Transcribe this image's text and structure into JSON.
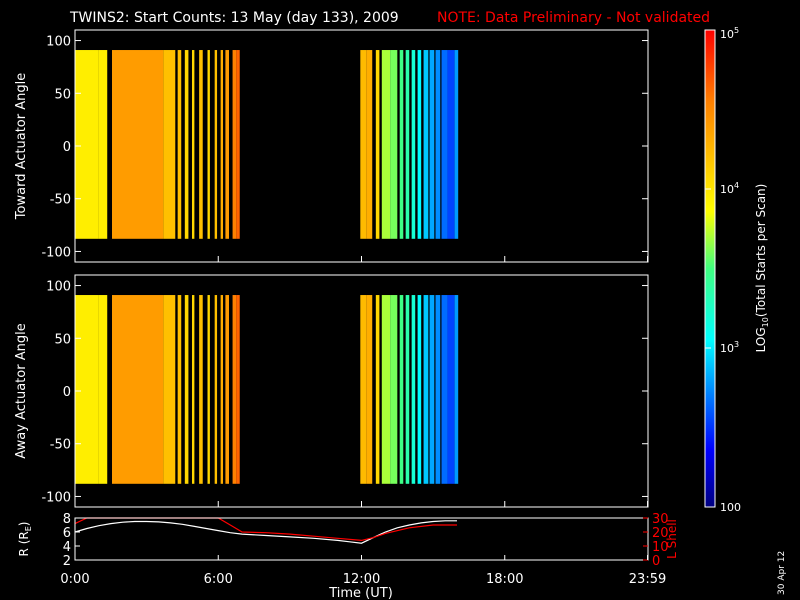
{
  "title": {
    "main": "TWINS2: Start Counts: 13 May (day 133), 2009",
    "note": "NOTE: Data Preliminary - Not validated"
  },
  "date_stamp": "30 Apr 12",
  "colors": {
    "background": "#000000",
    "axis": "#ffffff",
    "note": "#ff0000",
    "r_line": "#ffffff",
    "lshell_line": "#ff0000"
  },
  "colorbar": {
    "label": "LOG10(Total Starts per Scan)",
    "label_main": "LOG",
    "label_sub": "10",
    "label_rest": "(Total Starts per Scan)",
    "scale": "log",
    "range": [
      100,
      100000
    ],
    "ticks": [
      {
        "value": 100,
        "label": "100"
      },
      {
        "value": 1000,
        "label_base": "10",
        "label_exp": "3"
      },
      {
        "value": 10000,
        "label_base": "10",
        "label_exp": "4"
      },
      {
        "value": 100000,
        "label_base": "10",
        "label_exp": "5"
      }
    ]
  },
  "chart_data": [
    {
      "type": "heatmap",
      "name": "toward",
      "ylabel": "Toward Actuator Angle",
      "xlim": [
        0,
        24
      ],
      "ylim": [
        -110,
        110
      ],
      "y_extent": [
        -88,
        91
      ],
      "yticks": [
        100,
        50,
        0,
        -50,
        -100
      ],
      "ytick_labels": [
        "100",
        "50",
        "0",
        "-50",
        "-100"
      ],
      "colorbar": "log 100 to 100000",
      "scans": [
        {
          "t0": 0.0,
          "t1": 1.0,
          "counts": 9000
        },
        {
          "t0": 1.0,
          "t1": 1.35,
          "counts": 9000
        },
        {
          "t0": 1.55,
          "t1": 3.7,
          "counts": 25000
        },
        {
          "t0": 3.7,
          "t1": 4.2,
          "counts": 16000
        },
        {
          "t0": 4.3,
          "t1": 4.45,
          "counts": 16000
        },
        {
          "t0": 4.6,
          "t1": 4.75,
          "counts": 12000
        },
        {
          "t0": 4.9,
          "t1": 5.0,
          "counts": 12000
        },
        {
          "t0": 5.2,
          "t1": 5.35,
          "counts": 16000
        },
        {
          "t0": 5.55,
          "t1": 5.65,
          "counts": 12000
        },
        {
          "t0": 5.85,
          "t1": 5.95,
          "counts": 16000
        },
        {
          "t0": 6.1,
          "t1": 6.2,
          "counts": 20000
        },
        {
          "t0": 6.3,
          "t1": 6.45,
          "counts": 25000
        },
        {
          "t0": 6.6,
          "t1": 6.75,
          "counts": 35000
        },
        {
          "t0": 6.75,
          "t1": 6.9,
          "counts": 45000
        },
        {
          "t0": 11.95,
          "t1": 12.2,
          "counts": 17000
        },
        {
          "t0": 12.2,
          "t1": 12.45,
          "counts": 20000
        },
        {
          "t0": 12.6,
          "t1": 12.75,
          "counts": 12000
        },
        {
          "t0": 12.85,
          "t1": 13.2,
          "counts": 5000
        },
        {
          "t0": 13.2,
          "t1": 13.5,
          "counts": 4000
        },
        {
          "t0": 13.6,
          "t1": 13.75,
          "counts": 3000
        },
        {
          "t0": 13.85,
          "t1": 14.0,
          "counts": 2200
        },
        {
          "t0": 14.1,
          "t1": 14.25,
          "counts": 1600
        },
        {
          "t0": 14.35,
          "t1": 14.5,
          "counts": 1100
        },
        {
          "t0": 14.6,
          "t1": 14.8,
          "counts": 800
        },
        {
          "t0": 14.85,
          "t1": 15.05,
          "counts": 650
        },
        {
          "t0": 15.1,
          "t1": 15.3,
          "counts": 550
        },
        {
          "t0": 15.35,
          "t1": 15.6,
          "counts": 450
        },
        {
          "t0": 15.6,
          "t1": 15.9,
          "counts": 350
        },
        {
          "t0": 15.9,
          "t1": 16.05,
          "counts": 600
        }
      ]
    },
    {
      "type": "heatmap",
      "name": "away",
      "ylabel": "Away Actuator Angle",
      "xlim": [
        0,
        24
      ],
      "ylim": [
        -110,
        110
      ],
      "y_extent": [
        -88,
        91
      ],
      "yticks": [
        100,
        50,
        0,
        -50,
        -100
      ],
      "ytick_labels": [
        "100",
        "50",
        "0",
        "-50",
        "-100"
      ],
      "colorbar": "log 100 to 100000",
      "scans": [
        {
          "t0": 0.0,
          "t1": 1.0,
          "counts": 9000
        },
        {
          "t0": 1.0,
          "t1": 1.35,
          "counts": 9000
        },
        {
          "t0": 1.55,
          "t1": 3.7,
          "counts": 25000
        },
        {
          "t0": 3.7,
          "t1": 4.2,
          "counts": 16000
        },
        {
          "t0": 4.3,
          "t1": 4.45,
          "counts": 16000
        },
        {
          "t0": 4.6,
          "t1": 4.75,
          "counts": 12000
        },
        {
          "t0": 4.9,
          "t1": 5.0,
          "counts": 12000
        },
        {
          "t0": 5.2,
          "t1": 5.35,
          "counts": 16000
        },
        {
          "t0": 5.55,
          "t1": 5.65,
          "counts": 12000
        },
        {
          "t0": 5.85,
          "t1": 5.95,
          "counts": 16000
        },
        {
          "t0": 6.1,
          "t1": 6.2,
          "counts": 20000
        },
        {
          "t0": 6.3,
          "t1": 6.45,
          "counts": 25000
        },
        {
          "t0": 6.6,
          "t1": 6.75,
          "counts": 35000
        },
        {
          "t0": 6.75,
          "t1": 6.9,
          "counts": 45000
        },
        {
          "t0": 11.95,
          "t1": 12.2,
          "counts": 17000
        },
        {
          "t0": 12.2,
          "t1": 12.45,
          "counts": 20000
        },
        {
          "t0": 12.6,
          "t1": 12.75,
          "counts": 12000
        },
        {
          "t0": 12.85,
          "t1": 13.2,
          "counts": 5000
        },
        {
          "t0": 13.2,
          "t1": 13.5,
          "counts": 4000
        },
        {
          "t0": 13.6,
          "t1": 13.75,
          "counts": 3000
        },
        {
          "t0": 13.85,
          "t1": 14.0,
          "counts": 2200
        },
        {
          "t0": 14.1,
          "t1": 14.25,
          "counts": 1600
        },
        {
          "t0": 14.35,
          "t1": 14.5,
          "counts": 1100
        },
        {
          "t0": 14.6,
          "t1": 14.8,
          "counts": 800
        },
        {
          "t0": 14.85,
          "t1": 15.05,
          "counts": 650
        },
        {
          "t0": 15.1,
          "t1": 15.3,
          "counts": 550
        },
        {
          "t0": 15.35,
          "t1": 15.6,
          "counts": 450
        },
        {
          "t0": 15.6,
          "t1": 15.9,
          "counts": 350
        },
        {
          "t0": 15.9,
          "t1": 16.05,
          "counts": 600
        }
      ]
    },
    {
      "type": "line",
      "name": "orbit",
      "xlabel": "Time (UT)",
      "xlim": [
        0,
        24
      ],
      "xticks": [
        0,
        6,
        12,
        18,
        23.98
      ],
      "xtick_labels": [
        "0:00",
        "6:00",
        "12:00",
        "18:00",
        "23:59"
      ],
      "ylabel_left": "R (RE)",
      "ylabel_left_main": "R (R",
      "ylabel_left_sub": "E",
      "ylabel_left_close": ")",
      "ylim_left": [
        2,
        8
      ],
      "yticks_left": [
        2,
        4,
        6,
        8
      ],
      "ylabel_right": "L Shell",
      "ylim_right": [
        0,
        30
      ],
      "yticks_right": [
        0,
        10,
        20,
        30
      ],
      "series": [
        {
          "name": "R",
          "axis": "left",
          "x": [
            0,
            0.5,
            1,
            1.5,
            2,
            2.5,
            3,
            3.5,
            4,
            4.5,
            5,
            5.5,
            6,
            6.5,
            7,
            8,
            9,
            10,
            11,
            11.5,
            12,
            12.5,
            13,
            13.5,
            14,
            14.5,
            15,
            15.5,
            16
          ],
          "y": [
            6.0,
            6.5,
            6.9,
            7.2,
            7.4,
            7.5,
            7.5,
            7.45,
            7.3,
            7.1,
            6.8,
            6.5,
            6.2,
            5.9,
            5.7,
            5.5,
            5.3,
            5.1,
            4.8,
            4.6,
            4.4,
            5.2,
            6.0,
            6.6,
            7.0,
            7.3,
            7.5,
            7.6,
            7.6
          ]
        },
        {
          "name": "L Shell",
          "axis": "right",
          "x": [
            0,
            0.5,
            1,
            6,
            6.6,
            7,
            8,
            9,
            10,
            11,
            12,
            12.5,
            13,
            14,
            15,
            16
          ],
          "y": [
            26,
            30,
            30,
            30,
            24,
            20,
            19.5,
            18.5,
            17,
            15.5,
            14,
            16,
            19,
            23,
            25,
            25
          ]
        }
      ]
    }
  ]
}
